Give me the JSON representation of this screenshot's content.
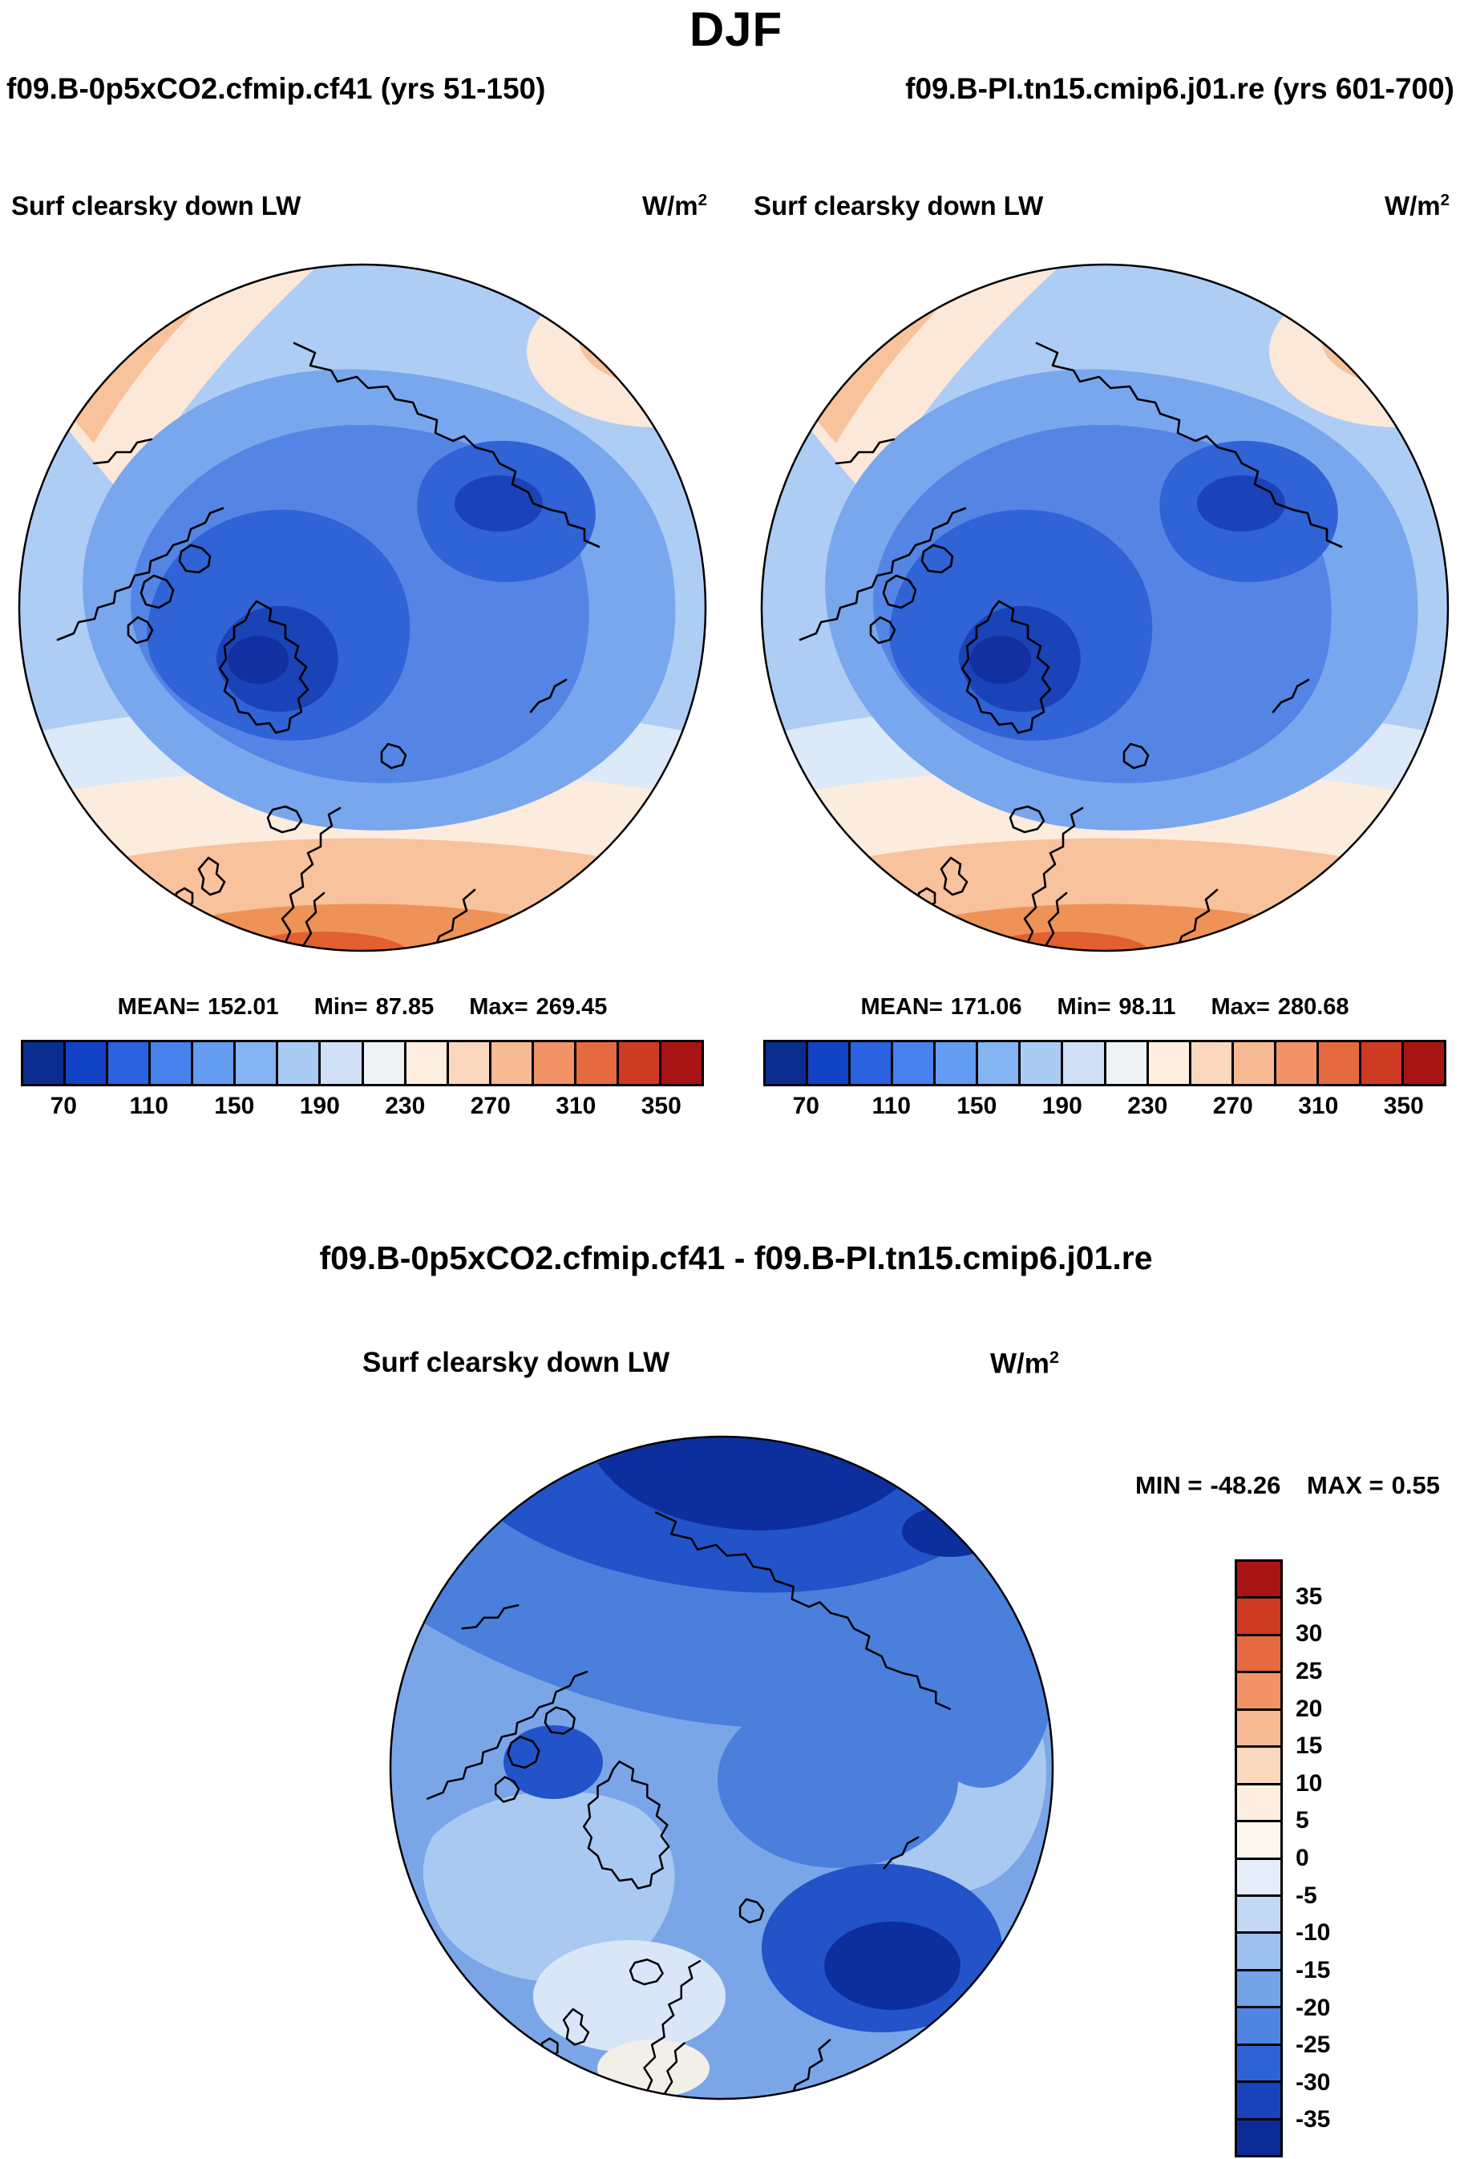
{
  "title": "DJF",
  "subtitle_left": "f09.B-0p5xCO2.cfmip.cf41 (yrs 51-150)",
  "subtitle_right": "f09.B-PI.tn15.cmip6.j01.re (yrs 601-700)",
  "panels": [
    {
      "var_title": "Surf clearsky down LW",
      "units_base": "W/m",
      "units_exp": "2",
      "stats": {
        "mean_label": "MEAN=",
        "mean": "152.01",
        "min_label": "Min=",
        "min": "87.85",
        "max_label": "Max=",
        "max": "269.45"
      },
      "colorbar": {
        "orientation": "horizontal",
        "cell_colors": [
          "#0a2d8f",
          "#1243c6",
          "#2a62e0",
          "#4681ec",
          "#639cf0",
          "#84b4f2",
          "#a9cbf4",
          "#cfe0f6",
          "#eef2f4",
          "#fdeee0",
          "#fbd8bd",
          "#f7ba92",
          "#f19367",
          "#e66a40",
          "#cf3a22",
          "#a81414"
        ],
        "tick_labels": [
          "70",
          "110",
          "150",
          "190",
          "230",
          "270",
          "310",
          "350"
        ]
      }
    },
    {
      "var_title": "Surf clearsky down LW",
      "units_base": "W/m",
      "units_exp": "2",
      "stats": {
        "mean_label": "MEAN=",
        "mean": "171.06",
        "min_label": "Min=",
        "min": "98.11",
        "max_label": "Max=",
        "max": "280.68"
      },
      "colorbar": {
        "orientation": "horizontal",
        "cell_colors": [
          "#0a2d8f",
          "#1243c6",
          "#2a62e0",
          "#4681ec",
          "#639cf0",
          "#84b4f2",
          "#a9cbf4",
          "#cfe0f6",
          "#eef2f4",
          "#fdeee0",
          "#fbd8bd",
          "#f7ba92",
          "#f19367",
          "#e66a40",
          "#cf3a22",
          "#a81414"
        ],
        "tick_labels": [
          "70",
          "110",
          "150",
          "190",
          "230",
          "270",
          "310",
          "350"
        ]
      }
    }
  ],
  "diff": {
    "title": "f09.B-0p5xCO2.cfmip.cf41 - f09.B-PI.tn15.cmip6.j01.re",
    "var_title": "Surf clearsky down LW",
    "units_base": "W/m",
    "units_exp": "2",
    "min_label": "MIN =",
    "min_value": "-48.26",
    "max_label": "MAX =",
    "max_value": "0.55",
    "colorbar": {
      "orientation": "vertical",
      "cell_colors": [
        "#a81414",
        "#cf3a22",
        "#e66a40",
        "#f19367",
        "#f7ba92",
        "#fbd8bd",
        "#fdeee0",
        "#fef7f0",
        "#e4edf8",
        "#c3d8f4",
        "#9cc0ee",
        "#74a3e8",
        "#4f84e0",
        "#2f63d4",
        "#1843bc",
        "#0b2c96"
      ],
      "tick_labels": [
        "35",
        "30",
        "25",
        "20",
        "15",
        "10",
        "5",
        "0",
        "-5",
        "-10",
        "-15",
        "-20",
        "-25",
        "-30",
        "-35"
      ]
    }
  },
  "chart_data": [
    {
      "type": "heatmap",
      "subtype": "north-polar-stereographic-filled-contour-map",
      "season": "DJF",
      "run": "f09.B-0p5xCO2.cfmip.cf41",
      "years": "51-150",
      "variable": "Surf clearsky down LW",
      "units": "W/m2",
      "mean": 152.01,
      "min": 87.85,
      "max": 269.45,
      "colorbar_ticks": [
        70,
        110,
        150,
        190,
        230,
        270,
        310,
        350
      ],
      "contour_range": [
        50,
        370
      ],
      "contour_interval": 20,
      "palette_blue_to_red": [
        "#0a2d8f",
        "#1243c6",
        "#2a62e0",
        "#4681ec",
        "#639cf0",
        "#84b4f2",
        "#a9cbf4",
        "#cfe0f6",
        "#eef2f4",
        "#fdeee0",
        "#fbd8bd",
        "#f7ba92",
        "#f19367",
        "#e66a40",
        "#cf3a22",
        "#a81414"
      ],
      "legend_position": "bottom"
    },
    {
      "type": "heatmap",
      "subtype": "north-polar-stereographic-filled-contour-map",
      "season": "DJF",
      "run": "f09.B-PI.tn15.cmip6.j01.re",
      "years": "601-700",
      "variable": "Surf clearsky down LW",
      "units": "W/m2",
      "mean": 171.06,
      "min": 98.11,
      "max": 280.68,
      "colorbar_ticks": [
        70,
        110,
        150,
        190,
        230,
        270,
        310,
        350
      ],
      "contour_range": [
        50,
        370
      ],
      "contour_interval": 20,
      "palette_blue_to_red": [
        "#0a2d8f",
        "#1243c6",
        "#2a62e0",
        "#4681ec",
        "#639cf0",
        "#84b4f2",
        "#a9cbf4",
        "#cfe0f6",
        "#eef2f4",
        "#fdeee0",
        "#fbd8bd",
        "#f7ba92",
        "#f19367",
        "#e66a40",
        "#cf3a22",
        "#a81414"
      ],
      "legend_position": "bottom"
    },
    {
      "type": "heatmap",
      "subtype": "north-polar-stereographic-difference-map",
      "season": "DJF",
      "title": "f09.B-0p5xCO2.cfmip.cf41 - f09.B-PI.tn15.cmip6.j01.re",
      "variable": "Surf clearsky down LW",
      "units": "W/m2",
      "min": -48.26,
      "max": 0.55,
      "colorbar_ticks": [
        35,
        30,
        25,
        20,
        15,
        10,
        5,
        0,
        -5,
        -10,
        -15,
        -20,
        -25,
        -30,
        -35
      ],
      "contour_range": [
        -40,
        40
      ],
      "contour_interval": 5,
      "palette_red_to_blue": [
        "#a81414",
        "#cf3a22",
        "#e66a40",
        "#f19367",
        "#f7ba92",
        "#fbd8bd",
        "#fdeee0",
        "#fef7f0",
        "#e4edf8",
        "#c3d8f4",
        "#9cc0ee",
        "#74a3e8",
        "#4f84e0",
        "#2f63d4",
        "#1843bc",
        "#0b2c96"
      ],
      "legend_position": "right"
    }
  ]
}
